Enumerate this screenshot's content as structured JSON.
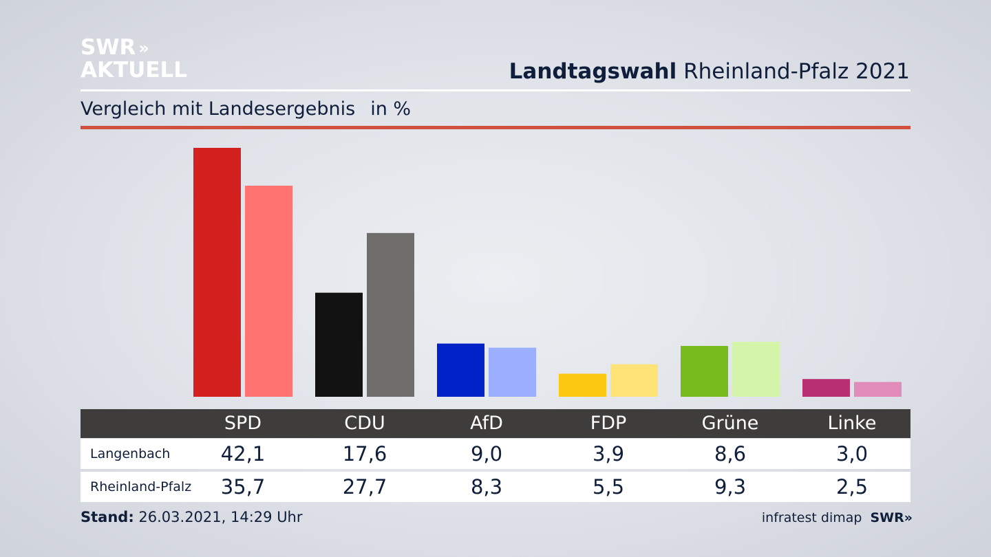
{
  "brand": {
    "line1": "SWR",
    "arrows": "»",
    "line2": "AKTUELL"
  },
  "header": {
    "title_bold": "Landtagswahl",
    "title_rest": "Rheinland-Pfalz 2021",
    "subtitle": "Vergleich mit Landesergebnis",
    "unit": "in %"
  },
  "chart_data": {
    "type": "bar",
    "title": "Landtagswahl Rheinland-Pfalz 2021",
    "subtitle": "Vergleich mit Landesergebnis",
    "unit": "in %",
    "categories": [
      "SPD",
      "CDU",
      "AfD",
      "FDP",
      "Grüne",
      "Linke"
    ],
    "series": [
      {
        "name": "Langenbach",
        "values": [
          42.1,
          17.6,
          9.0,
          3.9,
          8.6,
          3.0
        ],
        "labels": [
          "42,1",
          "17,6",
          "9,0",
          "3,9",
          "8,6",
          "3,0"
        ],
        "colors": [
          "#d42120",
          "#121212",
          "#0022c6",
          "#fdc811",
          "#78bb1c",
          "#b82f72"
        ]
      },
      {
        "name": "Rheinland-Pfalz",
        "values": [
          35.7,
          27.7,
          8.3,
          5.5,
          9.3,
          2.5
        ],
        "labels": [
          "35,7",
          "27,7",
          "8,3",
          "5,5",
          "9,3",
          "2,5"
        ],
        "colors": [
          "#ff7470",
          "#6f6e6c",
          "#9caeff",
          "#ffe377",
          "#d4f5a9",
          "#e08bb9"
        ]
      }
    ],
    "ylim": [
      0,
      42.1
    ],
    "grid": false
  },
  "footer": {
    "stand_label": "Stand:",
    "stand_value": "26.03.2021, 14:29 Uhr",
    "source": "infratest dimap",
    "source_brand": "SWR",
    "source_arrows": "»"
  }
}
